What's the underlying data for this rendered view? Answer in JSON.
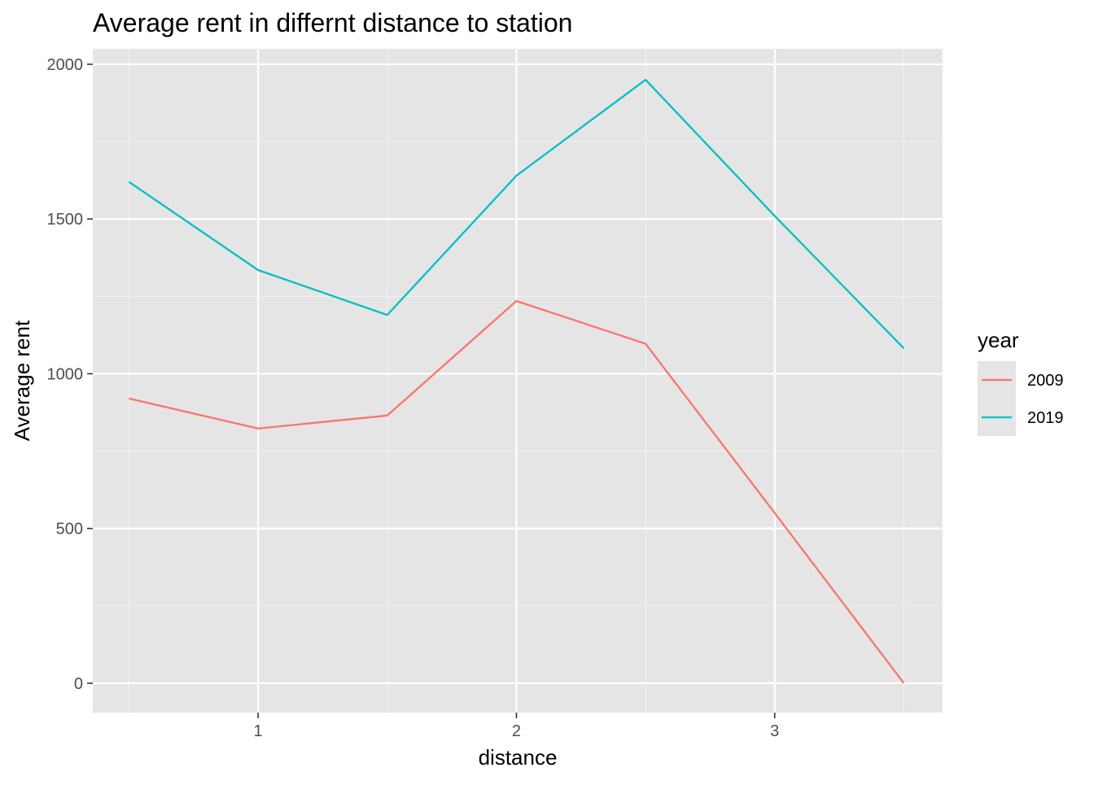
{
  "chart_data": {
    "type": "line",
    "title": "Average rent in differnt distance to station",
    "xlabel": "distance",
    "ylabel": "Average rent",
    "x": [
      0.5,
      1.0,
      1.5,
      2.0,
      2.5,
      3.0,
      3.5
    ],
    "xlim": [
      0.36,
      3.65
    ],
    "ylim": [
      -95,
      2050
    ],
    "x_ticks": [
      1,
      2,
      3
    ],
    "x_tick_labels": [
      "1",
      "2",
      "3"
    ],
    "y_ticks": [
      0,
      500,
      1000,
      1500,
      2000
    ],
    "y_tick_labels": [
      "0",
      "500",
      "1000",
      "1500",
      "2000"
    ],
    "grid": true,
    "legend": {
      "title": "year",
      "position": "right"
    },
    "series": [
      {
        "name": "2009",
        "color": "#F8766D",
        "values": [
          920,
          823,
          865,
          1235,
          1097,
          550,
          0
        ]
      },
      {
        "name": "2019",
        "color": "#00BFC4",
        "values": [
          1620,
          1335,
          1190,
          1640,
          1950,
          1510,
          1082
        ]
      }
    ]
  },
  "colors": {
    "panel_background": "#E5E5E5",
    "grid_major": "#FFFFFF",
    "grid_minor": "#F2F2F2",
    "tick_text": "#4D4D4D"
  }
}
